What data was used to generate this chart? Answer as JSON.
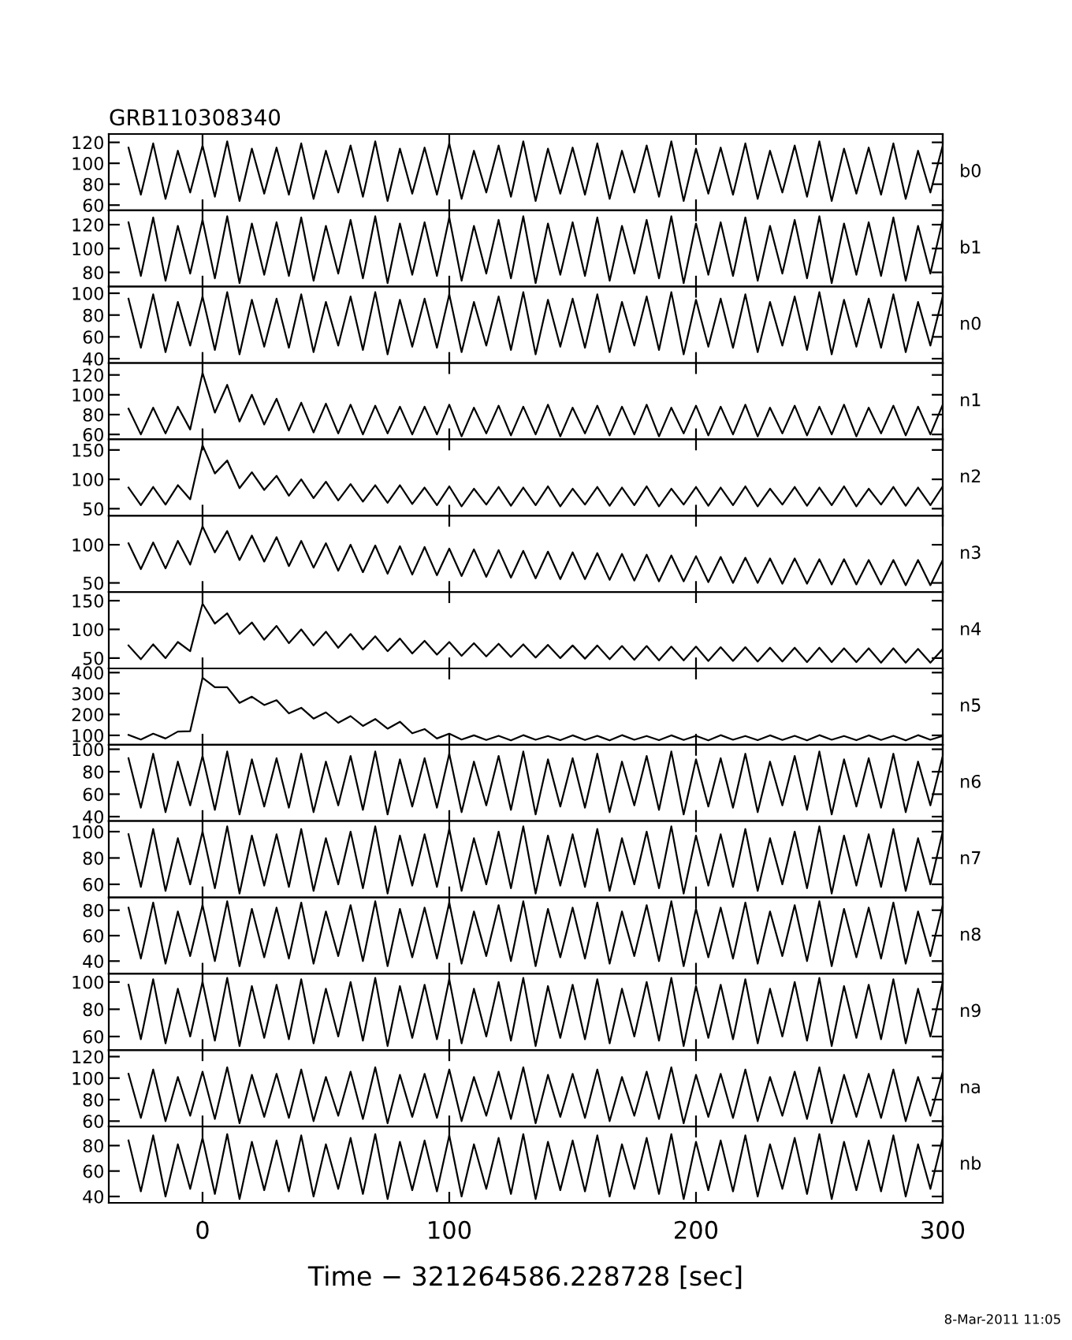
{
  "chart_data": [
    {
      "type": "line",
      "title": "GRB110308340",
      "x": [
        -30,
        -25,
        -20,
        -15,
        -10,
        -5,
        0,
        5,
        10,
        15,
        20,
        25,
        30,
        35,
        40,
        45,
        50,
        55,
        60,
        65,
        70,
        75,
        80,
        85,
        90,
        95,
        100,
        105,
        110,
        115,
        120,
        125,
        130,
        135,
        140,
        145,
        150,
        155,
        160,
        165,
        170,
        175,
        180,
        185,
        190,
        195,
        200,
        205,
        210,
        215,
        220,
        225,
        230,
        235,
        240,
        245,
        250,
        255,
        260,
        265,
        270,
        275,
        280,
        285,
        290,
        295,
        300
      ],
      "xlim": [
        -38,
        300
      ],
      "xticks": [
        0,
        100,
        200,
        300
      ],
      "ylim": [
        55,
        128
      ],
      "yticks": [
        60,
        80,
        100,
        120
      ],
      "tick_labels": "y",
      "series": [
        {
          "name": "b0",
          "color": "#000000",
          "values": [
            115,
            70,
            119,
            66,
            112,
            72,
            117,
            68,
            121,
            64,
            114,
            71,
            115,
            70,
            119,
            66,
            112,
            72,
            117,
            68,
            121,
            64,
            114,
            71,
            115,
            70,
            119,
            66,
            112,
            72,
            117,
            68,
            121,
            64,
            114,
            71,
            115,
            70,
            119,
            66,
            112,
            72,
            117,
            68,
            121,
            64,
            114,
            71,
            115,
            70,
            119,
            66,
            112,
            72,
            117,
            68,
            121,
            64,
            114,
            71,
            115,
            70,
            119,
            66,
            112,
            72,
            117
          ]
        }
      ]
    },
    {
      "type": "line",
      "x": [
        -30,
        -25,
        -20,
        -15,
        -10,
        -5,
        0,
        5,
        10,
        15,
        20,
        25,
        30,
        35,
        40,
        45,
        50,
        55,
        60,
        65,
        70,
        75,
        80,
        85,
        90,
        95,
        100,
        105,
        110,
        115,
        120,
        125,
        130,
        135,
        140,
        145,
        150,
        155,
        160,
        165,
        170,
        175,
        180,
        185,
        190,
        195,
        200,
        205,
        210,
        215,
        220,
        225,
        230,
        235,
        240,
        245,
        250,
        255,
        260,
        265,
        270,
        275,
        280,
        285,
        290,
        295,
        300
      ],
      "xlim": [
        -38,
        300
      ],
      "xticks": [
        0,
        100,
        200,
        300
      ],
      "ylim": [
        68,
        132
      ],
      "yticks": [
        80,
        100,
        120
      ],
      "tick_labels": "y",
      "series": [
        {
          "name": "b1",
          "color": "#000000",
          "values": [
            122,
            77,
            126,
            73,
            119,
            79,
            124,
            75,
            127,
            71,
            121,
            78,
            122,
            77,
            126,
            73,
            119,
            79,
            124,
            75,
            127,
            71,
            121,
            78,
            122,
            77,
            126,
            73,
            119,
            79,
            124,
            75,
            127,
            71,
            121,
            78,
            122,
            77,
            126,
            73,
            119,
            79,
            124,
            75,
            127,
            71,
            121,
            78,
            122,
            77,
            126,
            73,
            119,
            79,
            124,
            75,
            127,
            71,
            121,
            78,
            122,
            77,
            126,
            73,
            119,
            79,
            124
          ]
        }
      ]
    },
    {
      "type": "line",
      "x": [
        -30,
        -25,
        -20,
        -15,
        -10,
        -5,
        0,
        5,
        10,
        15,
        20,
        25,
        30,
        35,
        40,
        45,
        50,
        55,
        60,
        65,
        70,
        75,
        80,
        85,
        90,
        95,
        100,
        105,
        110,
        115,
        120,
        125,
        130,
        135,
        140,
        145,
        150,
        155,
        160,
        165,
        170,
        175,
        180,
        185,
        190,
        195,
        200,
        205,
        210,
        215,
        220,
        225,
        230,
        235,
        240,
        245,
        250,
        255,
        260,
        265,
        270,
        275,
        280,
        285,
        290,
        295,
        300
      ],
      "xlim": [
        -38,
        300
      ],
      "xticks": [
        0,
        100,
        200,
        300
      ],
      "ylim": [
        36,
        106
      ],
      "yticks": [
        40,
        60,
        80,
        100
      ],
      "tick_labels": "y",
      "series": [
        {
          "name": "n0",
          "color": "#000000",
          "values": [
            95,
            50,
            99,
            46,
            92,
            52,
            97,
            48,
            101,
            44,
            94,
            51,
            95,
            50,
            99,
            46,
            92,
            52,
            97,
            48,
            101,
            44,
            94,
            51,
            95,
            50,
            99,
            46,
            92,
            52,
            97,
            48,
            101,
            44,
            94,
            51,
            95,
            50,
            99,
            46,
            92,
            52,
            97,
            48,
            101,
            44,
            94,
            51,
            95,
            50,
            99,
            46,
            92,
            52,
            97,
            48,
            101,
            44,
            94,
            51,
            95,
            50,
            99,
            46,
            92,
            52,
            97
          ]
        }
      ]
    },
    {
      "type": "line",
      "x": [
        -30,
        -25,
        -20,
        -15,
        -10,
        -5,
        0,
        5,
        10,
        15,
        20,
        25,
        30,
        35,
        40,
        45,
        50,
        55,
        60,
        65,
        70,
        75,
        80,
        85,
        90,
        95,
        100,
        105,
        110,
        115,
        120,
        125,
        130,
        135,
        140,
        145,
        150,
        155,
        160,
        165,
        170,
        175,
        180,
        185,
        190,
        195,
        200,
        205,
        210,
        215,
        220,
        225,
        230,
        235,
        240,
        245,
        250,
        255,
        260,
        265,
        270,
        275,
        280,
        285,
        290,
        295,
        300
      ],
      "xlim": [
        -38,
        300
      ],
      "xticks": [
        0,
        100,
        200,
        300
      ],
      "ylim": [
        55,
        132
      ],
      "yticks": [
        60,
        80,
        100,
        120
      ],
      "tick_labels": "y",
      "series": [
        {
          "name": "n1",
          "color": "#000000",
          "values": [
            86,
            60,
            87,
            61,
            88,
            65,
            122,
            82,
            110,
            73,
            100,
            70,
            96,
            64,
            92,
            62,
            91,
            61,
            90,
            60,
            89,
            61,
            88,
            60,
            88,
            60,
            90,
            58,
            87,
            61,
            89,
            59,
            88,
            60,
            90,
            58,
            87,
            61,
            89,
            59,
            88,
            60,
            90,
            58,
            87,
            61,
            89,
            59,
            88,
            60,
            90,
            58,
            87,
            61,
            89,
            59,
            88,
            60,
            90,
            58,
            87,
            61,
            89,
            59,
            88,
            60,
            90
          ]
        }
      ]
    },
    {
      "type": "line",
      "x": [
        -30,
        -25,
        -20,
        -15,
        -10,
        -5,
        0,
        5,
        10,
        15,
        20,
        25,
        30,
        35,
        40,
        45,
        50,
        55,
        60,
        65,
        70,
        75,
        80,
        85,
        90,
        95,
        100,
        105,
        110,
        115,
        120,
        125,
        130,
        135,
        140,
        145,
        150,
        155,
        160,
        165,
        170,
        175,
        180,
        185,
        190,
        195,
        200,
        205,
        210,
        215,
        220,
        225,
        230,
        235,
        240,
        245,
        250,
        255,
        260,
        265,
        270,
        275,
        280,
        285,
        290,
        295,
        300
      ],
      "xlim": [
        -38,
        300
      ],
      "xticks": [
        0,
        100,
        200,
        300
      ],
      "ylim": [
        38,
        168
      ],
      "yticks": [
        50,
        100,
        150
      ],
      "tick_labels": "y",
      "series": [
        {
          "name": "n2",
          "color": "#000000",
          "values": [
            86,
            56,
            87,
            57,
            90,
            66,
            158,
            110,
            132,
            85,
            112,
            82,
            106,
            72,
            100,
            68,
            96,
            64,
            92,
            62,
            90,
            60,
            90,
            58,
            86,
            56,
            88,
            54,
            84,
            57,
            87,
            55,
            86,
            56,
            88,
            54,
            84,
            57,
            87,
            55,
            86,
            56,
            88,
            54,
            84,
            57,
            87,
            55,
            86,
            56,
            88,
            54,
            84,
            57,
            87,
            55,
            86,
            56,
            88,
            54,
            84,
            57,
            87,
            55,
            86,
            56,
            88
          ]
        }
      ]
    },
    {
      "type": "line",
      "x": [
        -30,
        -25,
        -20,
        -15,
        -10,
        -5,
        0,
        5,
        10,
        15,
        20,
        25,
        30,
        35,
        40,
        45,
        50,
        55,
        60,
        65,
        70,
        75,
        80,
        85,
        90,
        95,
        100,
        105,
        110,
        115,
        120,
        125,
        130,
        135,
        140,
        145,
        150,
        155,
        160,
        165,
        170,
        175,
        180,
        185,
        190,
        195,
        200,
        205,
        210,
        215,
        220,
        225,
        230,
        235,
        240,
        245,
        250,
        255,
        260,
        265,
        270,
        275,
        280,
        285,
        290,
        295,
        300
      ],
      "xlim": [
        -38,
        300
      ],
      "xticks": [
        0,
        100,
        200,
        300
      ],
      "ylim": [
        38,
        138
      ],
      "yticks": [
        50,
        100
      ],
      "tick_labels": "y",
      "series": [
        {
          "name": "n3",
          "color": "#000000",
          "values": [
            102,
            68,
            103,
            69,
            105,
            74,
            124,
            90,
            118,
            80,
            112,
            78,
            110,
            72,
            105,
            70,
            102,
            66,
            100,
            64,
            99,
            62,
            98,
            61,
            97,
            60,
            95,
            59,
            94,
            58,
            93,
            57,
            92,
            56,
            91,
            55,
            90,
            55,
            89,
            54,
            88,
            53,
            87,
            52,
            86,
            52,
            85,
            51,
            84,
            50,
            83,
            50,
            82,
            49,
            82,
            49,
            81,
            48,
            81,
            48,
            80,
            48,
            80,
            47,
            80,
            47,
            80
          ]
        }
      ]
    },
    {
      "type": "line",
      "x": [
        -30,
        -25,
        -20,
        -15,
        -10,
        -5,
        0,
        5,
        10,
        15,
        20,
        25,
        30,
        35,
        40,
        45,
        50,
        55,
        60,
        65,
        70,
        75,
        80,
        85,
        90,
        95,
        100,
        105,
        110,
        115,
        120,
        125,
        130,
        135,
        140,
        145,
        150,
        155,
        160,
        165,
        170,
        175,
        180,
        185,
        190,
        195,
        200,
        205,
        210,
        215,
        220,
        225,
        230,
        235,
        240,
        245,
        250,
        255,
        260,
        265,
        270,
        275,
        280,
        285,
        290,
        295,
        300
      ],
      "xlim": [
        -38,
        300
      ],
      "xticks": [
        0,
        100,
        200,
        300
      ],
      "ylim": [
        32,
        165
      ],
      "yticks": [
        50,
        100,
        150
      ],
      "tick_labels": "y",
      "series": [
        {
          "name": "n4",
          "color": "#000000",
          "values": [
            72,
            48,
            74,
            50,
            78,
            62,
            145,
            110,
            128,
            92,
            112,
            82,
            106,
            76,
            100,
            72,
            96,
            68,
            92,
            65,
            88,
            62,
            84,
            58,
            80,
            56,
            78,
            54,
            76,
            53,
            75,
            52,
            74,
            51,
            73,
            50,
            72,
            49,
            72,
            48,
            71,
            47,
            71,
            46,
            70,
            46,
            70,
            45,
            69,
            45,
            69,
            44,
            68,
            44,
            68,
            43,
            68,
            43,
            67,
            43,
            67,
            42,
            67,
            42,
            66,
            42,
            66
          ]
        }
      ]
    },
    {
      "type": "line",
      "x": [
        -30,
        -25,
        -20,
        -15,
        -10,
        -5,
        0,
        5,
        10,
        15,
        20,
        25,
        30,
        35,
        40,
        45,
        50,
        55,
        60,
        65,
        70,
        75,
        80,
        85,
        90,
        95,
        100,
        105,
        110,
        115,
        120,
        125,
        130,
        135,
        140,
        145,
        150,
        155,
        160,
        165,
        170,
        175,
        180,
        185,
        190,
        195,
        200,
        205,
        210,
        215,
        220,
        225,
        230,
        235,
        240,
        245,
        250,
        255,
        260,
        265,
        270,
        275,
        280,
        285,
        290,
        295,
        300
      ],
      "xlim": [
        -38,
        300
      ],
      "xticks": [
        0,
        100,
        200,
        300
      ],
      "ylim": [
        55,
        420
      ],
      "yticks": [
        100,
        200,
        300,
        400
      ],
      "tick_labels": "y",
      "series": [
        {
          "name": "n5",
          "color": "#000000",
          "values": [
            102,
            80,
            108,
            85,
            118,
            120,
            375,
            330,
            330,
            255,
            285,
            245,
            268,
            205,
            232,
            180,
            210,
            160,
            192,
            145,
            178,
            132,
            165,
            110,
            130,
            85,
            108,
            80,
            100,
            78,
            98,
            76,
            101,
            79,
            97,
            77,
            100,
            78,
            98,
            76,
            101,
            79,
            97,
            77,
            100,
            78,
            98,
            76,
            101,
            79,
            97,
            77,
            100,
            78,
            98,
            76,
            101,
            79,
            97,
            77,
            100,
            78,
            98,
            76,
            101,
            79,
            97
          ]
        }
      ]
    },
    {
      "type": "line",
      "x": [
        -30,
        -25,
        -20,
        -15,
        -10,
        -5,
        0,
        5,
        10,
        15,
        20,
        25,
        30,
        35,
        40,
        45,
        50,
        55,
        60,
        65,
        70,
        75,
        80,
        85,
        90,
        95,
        100,
        105,
        110,
        115,
        120,
        125,
        130,
        135,
        140,
        145,
        150,
        155,
        160,
        165,
        170,
        175,
        180,
        185,
        190,
        195,
        200,
        205,
        210,
        215,
        220,
        225,
        230,
        235,
        240,
        245,
        250,
        255,
        260,
        265,
        270,
        275,
        280,
        285,
        290,
        295,
        300
      ],
      "xlim": [
        -38,
        300
      ],
      "xticks": [
        0,
        100,
        200,
        300
      ],
      "ylim": [
        36,
        104
      ],
      "yticks": [
        40,
        60,
        80,
        100
      ],
      "tick_labels": "y",
      "series": [
        {
          "name": "n6",
          "color": "#000000",
          "values": [
            92,
            48,
            96,
            44,
            89,
            50,
            94,
            46,
            98,
            42,
            91,
            49,
            92,
            48,
            96,
            44,
            89,
            50,
            94,
            46,
            98,
            42,
            91,
            49,
            92,
            48,
            96,
            44,
            89,
            50,
            94,
            46,
            98,
            42,
            91,
            49,
            92,
            48,
            96,
            44,
            89,
            50,
            94,
            46,
            98,
            42,
            91,
            49,
            92,
            48,
            96,
            44,
            89,
            50,
            94,
            46,
            98,
            42,
            91,
            49,
            92,
            48,
            96,
            44,
            89,
            50,
            94
          ]
        }
      ]
    },
    {
      "type": "line",
      "x": [
        -30,
        -25,
        -20,
        -15,
        -10,
        -5,
        0,
        5,
        10,
        15,
        20,
        25,
        30,
        35,
        40,
        45,
        50,
        55,
        60,
        65,
        70,
        75,
        80,
        85,
        90,
        95,
        100,
        105,
        110,
        115,
        120,
        125,
        130,
        135,
        140,
        145,
        150,
        155,
        160,
        165,
        170,
        175,
        180,
        185,
        190,
        195,
        200,
        205,
        210,
        215,
        220,
        225,
        230,
        235,
        240,
        245,
        250,
        255,
        260,
        265,
        270,
        275,
        280,
        285,
        290,
        295,
        300
      ],
      "xlim": [
        -38,
        300
      ],
      "xticks": [
        0,
        100,
        200,
        300
      ],
      "ylim": [
        50,
        108
      ],
      "yticks": [
        60,
        80,
        100
      ],
      "tick_labels": "y",
      "series": [
        {
          "name": "n7",
          "color": "#000000",
          "values": [
            98,
            58,
            102,
            55,
            95,
            60,
            100,
            57,
            104,
            53,
            97,
            59,
            98,
            58,
            102,
            55,
            95,
            60,
            100,
            57,
            104,
            53,
            97,
            59,
            98,
            58,
            102,
            55,
            95,
            60,
            100,
            57,
            104,
            53,
            97,
            59,
            98,
            58,
            102,
            55,
            95,
            60,
            100,
            57,
            104,
            53,
            97,
            59,
            98,
            58,
            102,
            55,
            95,
            60,
            100,
            57,
            104,
            53,
            97,
            59,
            98,
            58,
            102,
            55,
            95,
            60,
            100
          ]
        }
      ]
    },
    {
      "type": "line",
      "x": [
        -30,
        -25,
        -20,
        -15,
        -10,
        -5,
        0,
        5,
        10,
        15,
        20,
        25,
        30,
        35,
        40,
        45,
        50,
        55,
        60,
        65,
        70,
        75,
        80,
        85,
        90,
        95,
        100,
        105,
        110,
        115,
        120,
        125,
        130,
        135,
        140,
        145,
        150,
        155,
        160,
        165,
        170,
        175,
        180,
        185,
        190,
        195,
        200,
        205,
        210,
        215,
        220,
        225,
        230,
        235,
        240,
        245,
        250,
        255,
        260,
        265,
        270,
        275,
        280,
        285,
        290,
        295,
        300
      ],
      "xlim": [
        -38,
        300
      ],
      "xticks": [
        0,
        100,
        200,
        300
      ],
      "ylim": [
        30,
        90
      ],
      "yticks": [
        40,
        60,
        80
      ],
      "tick_labels": "y",
      "series": [
        {
          "name": "n8",
          "color": "#000000",
          "values": [
            82,
            42,
            86,
            38,
            79,
            44,
            84,
            40,
            87,
            36,
            81,
            43,
            82,
            42,
            86,
            38,
            79,
            44,
            84,
            40,
            87,
            36,
            81,
            43,
            82,
            42,
            86,
            38,
            79,
            44,
            84,
            40,
            87,
            36,
            81,
            43,
            82,
            42,
            86,
            38,
            79,
            44,
            84,
            40,
            87,
            36,
            81,
            43,
            82,
            42,
            86,
            38,
            79,
            44,
            84,
            40,
            87,
            36,
            81,
            43,
            82,
            42,
            86,
            38,
            79,
            44,
            84
          ]
        }
      ]
    },
    {
      "type": "line",
      "x": [
        -30,
        -25,
        -20,
        -15,
        -10,
        -5,
        0,
        5,
        10,
        15,
        20,
        25,
        30,
        35,
        40,
        45,
        50,
        55,
        60,
        65,
        70,
        75,
        80,
        85,
        90,
        95,
        100,
        105,
        110,
        115,
        120,
        125,
        130,
        135,
        140,
        145,
        150,
        155,
        160,
        165,
        170,
        175,
        180,
        185,
        190,
        195,
        200,
        205,
        210,
        215,
        220,
        225,
        230,
        235,
        240,
        245,
        250,
        255,
        260,
        265,
        270,
        275,
        280,
        285,
        290,
        295,
        300
      ],
      "xlim": [
        -38,
        300
      ],
      "xticks": [
        0,
        100,
        200,
        300
      ],
      "ylim": [
        50,
        106
      ],
      "yticks": [
        60,
        80,
        100
      ],
      "tick_labels": "y",
      "series": [
        {
          "name": "n9",
          "color": "#000000",
          "values": [
            98,
            58,
            102,
            55,
            95,
            60,
            100,
            57,
            103,
            53,
            97,
            59,
            98,
            58,
            102,
            55,
            95,
            60,
            100,
            57,
            103,
            53,
            97,
            59,
            98,
            58,
            102,
            55,
            95,
            60,
            100,
            57,
            103,
            53,
            97,
            59,
            98,
            58,
            102,
            55,
            95,
            60,
            100,
            57,
            103,
            53,
            97,
            59,
            98,
            58,
            102,
            55,
            95,
            60,
            100,
            57,
            103,
            53,
            97,
            59,
            98,
            58,
            102,
            55,
            95,
            60,
            100
          ]
        }
      ]
    },
    {
      "type": "line",
      "x": [
        -30,
        -25,
        -20,
        -15,
        -10,
        -5,
        0,
        5,
        10,
        15,
        20,
        25,
        30,
        35,
        40,
        45,
        50,
        55,
        60,
        65,
        70,
        75,
        80,
        85,
        90,
        95,
        100,
        105,
        110,
        115,
        120,
        125,
        130,
        135,
        140,
        145,
        150,
        155,
        160,
        165,
        170,
        175,
        180,
        185,
        190,
        195,
        200,
        205,
        210,
        215,
        220,
        225,
        230,
        235,
        240,
        245,
        250,
        255,
        260,
        265,
        270,
        275,
        280,
        285,
        290,
        295,
        300
      ],
      "xlim": [
        -38,
        300
      ],
      "xticks": [
        0,
        100,
        200,
        300
      ],
      "ylim": [
        55,
        126
      ],
      "yticks": [
        60,
        80,
        100,
        120
      ],
      "tick_labels": "y",
      "series": [
        {
          "name": "na",
          "color": "#000000",
          "values": [
            104,
            63,
            108,
            60,
            101,
            65,
            106,
            62,
            110,
            58,
            103,
            64,
            104,
            63,
            108,
            60,
            101,
            65,
            106,
            62,
            110,
            58,
            103,
            64,
            104,
            63,
            108,
            60,
            101,
            65,
            106,
            62,
            110,
            58,
            103,
            64,
            104,
            63,
            108,
            60,
            101,
            65,
            106,
            62,
            110,
            58,
            103,
            64,
            104,
            63,
            108,
            60,
            101,
            65,
            106,
            62,
            110,
            58,
            103,
            64,
            104,
            63,
            108,
            60,
            101,
            65,
            106
          ]
        }
      ]
    },
    {
      "type": "line",
      "x": [
        -30,
        -25,
        -20,
        -15,
        -10,
        -5,
        0,
        5,
        10,
        15,
        20,
        25,
        30,
        35,
        40,
        45,
        50,
        55,
        60,
        65,
        70,
        75,
        80,
        85,
        90,
        95,
        100,
        105,
        110,
        115,
        120,
        125,
        130,
        135,
        140,
        145,
        150,
        155,
        160,
        165,
        170,
        175,
        180,
        185,
        190,
        195,
        200,
        205,
        210,
        215,
        220,
        225,
        230,
        235,
        240,
        245,
        250,
        255,
        260,
        265,
        270,
        275,
        280,
        285,
        290,
        295,
        300
      ],
      "xlim": [
        -38,
        300
      ],
      "xticks": [
        0,
        100,
        200,
        300
      ],
      "ylim": [
        35,
        95
      ],
      "yticks": [
        40,
        60,
        80
      ],
      "xlabel": "Time − 321264586.228728 [sec]",
      "annotations": [
        "8-Mar-2011 11:05"
      ],
      "series": [
        {
          "name": "nb",
          "color": "#000000",
          "values": [
            84,
            44,
            88,
            40,
            81,
            46,
            86,
            42,
            89,
            38,
            83,
            45,
            84,
            44,
            88,
            40,
            81,
            46,
            86,
            42,
            89,
            38,
            83,
            45,
            84,
            44,
            88,
            40,
            81,
            46,
            86,
            42,
            89,
            38,
            83,
            45,
            84,
            44,
            88,
            40,
            81,
            46,
            86,
            42,
            89,
            38,
            83,
            45,
            84,
            44,
            88,
            40,
            81,
            46,
            86,
            42,
            89,
            38,
            83,
            45,
            84,
            44,
            88,
            40,
            81,
            46,
            86
          ]
        }
      ]
    }
  ]
}
